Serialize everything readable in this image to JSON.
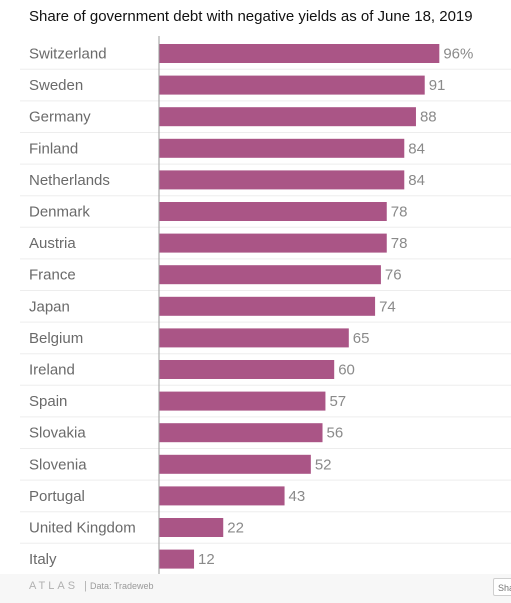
{
  "chart_data": {
    "type": "bar",
    "orientation": "horizontal",
    "title": "Share of government debt with negative yields as of June 18, 2019",
    "categories": [
      "Switzerland",
      "Sweden",
      "Germany",
      "Finland",
      "Netherlands",
      "Denmark",
      "Austria",
      "France",
      "Japan",
      "Belgium",
      "Ireland",
      "Spain",
      "Slovakia",
      "Slovenia",
      "Portugal",
      "United Kingdom",
      "Italy"
    ],
    "values": [
      96,
      91,
      88,
      84,
      84,
      78,
      78,
      76,
      74,
      65,
      60,
      57,
      56,
      52,
      43,
      22,
      12
    ],
    "value_labels": [
      "96%",
      "91",
      "88",
      "84",
      "84",
      "78",
      "78",
      "76",
      "74",
      "65",
      "60",
      "57",
      "56",
      "52",
      "43",
      "22",
      "12"
    ],
    "xlim": [
      0,
      100
    ],
    "grid": false,
    "bar_color": "#aa5586"
  },
  "footer": {
    "logo": "ATLAS",
    "separator": "|",
    "source": "Data: Tradeweb",
    "share_label": "Share"
  }
}
